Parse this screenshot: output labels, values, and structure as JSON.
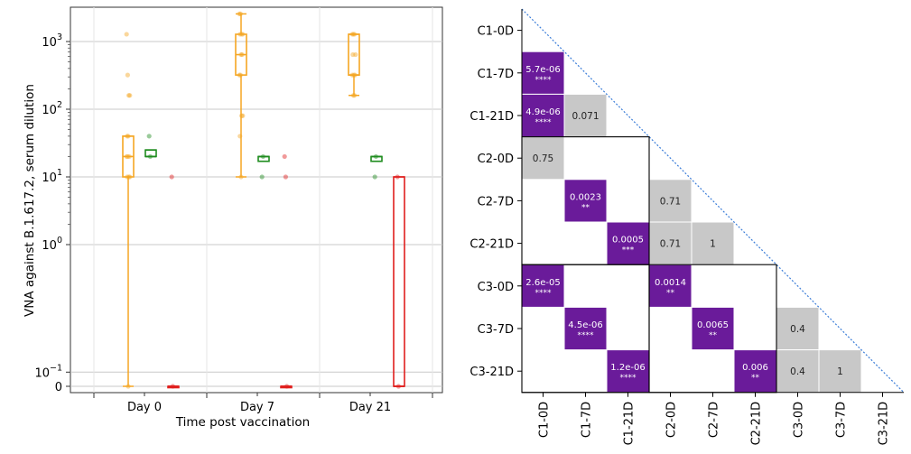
{
  "chart_data": [
    {
      "type": "box",
      "xlabel": "Time post vaccination",
      "ylabel": "VNA against B.1.617.2, serum dilution",
      "scale": "symlog",
      "categories": [
        "Day 0",
        "Day 7",
        "Day 21"
      ],
      "y_ticks": [
        {
          "value": 0,
          "label": "0"
        },
        {
          "value": 0.1,
          "base": "10",
          "exp": "−1"
        },
        {
          "value": 1,
          "base": "10",
          "exp": "0"
        },
        {
          "value": 10,
          "base": "10",
          "exp": "1"
        },
        {
          "value": 100,
          "base": "10",
          "exp": "2"
        },
        {
          "value": 1000,
          "base": "10",
          "exp": "3"
        }
      ],
      "grid": true,
      "series": [
        {
          "color": "#f5a623",
          "boxes": [
            {
              "category": "Day 0",
              "whislo": 0,
              "q1": 10,
              "med": 20,
              "q3": 40,
              "whishi": 40,
              "fliers": []
            },
            {
              "category": "Day 7",
              "whislo": 10,
              "q1": 320,
              "med": 640,
              "q3": 1280,
              "whishi": 2560,
              "fliers": []
            },
            {
              "category": "Day 21",
              "whislo": 160,
              "q1": 320,
              "med": 320,
              "q3": 1280,
              "whishi": 1280,
              "fliers": []
            }
          ],
          "points": [
            {
              "category": "Day 0",
              "values": [
                1280,
                320,
                160,
                160,
                40,
                40,
                20,
                20,
                20,
                10,
                10,
                10,
                0
              ]
            },
            {
              "category": "Day 7",
              "values": [
                2560,
                2560,
                1280,
                1280,
                1280,
                640,
                640,
                320,
                320,
                80,
                80,
                40,
                10
              ]
            },
            {
              "category": "Day 21",
              "values": [
                1280,
                1280,
                1280,
                640,
                640,
                320,
                320,
                320,
                160,
                160
              ]
            }
          ]
        },
        {
          "color": "#1e8c1e",
          "boxes": [
            {
              "category": "Day 0",
              "whislo": 20,
              "q1": 20,
              "med": 20,
              "q3": 25,
              "whishi": 25
            },
            {
              "category": "Day 7",
              "whislo": 17,
              "q1": 17,
              "med": 20,
              "q3": 20,
              "whishi": 20
            },
            {
              "category": "Day 21",
              "whislo": 17,
              "q1": 17,
              "med": 20,
              "q3": 20,
              "whishi": 20
            }
          ],
          "points": [
            {
              "category": "Day 0",
              "values": [
                40,
                20
              ]
            },
            {
              "category": "Day 7",
              "values": [
                10,
                20
              ]
            },
            {
              "category": "Day 21",
              "values": [
                10,
                20
              ]
            }
          ]
        },
        {
          "color": "#e0201e",
          "boxes": [
            {
              "category": "Day 0",
              "whislo": 0,
              "q1": 0,
              "med": 0,
              "q3": 0,
              "whishi": 0
            },
            {
              "category": "Day 7",
              "whislo": 0,
              "q1": 0,
              "med": 0,
              "q3": 0,
              "whishi": 0
            },
            {
              "category": "Day 21",
              "whislo": 0,
              "q1": 0,
              "med": 0,
              "q3": 10,
              "whishi": 10
            }
          ],
          "points": [
            {
              "category": "Day 0",
              "values": [
                10,
                0
              ]
            },
            {
              "category": "Day 7",
              "values": [
                20,
                10,
                0
              ]
            },
            {
              "category": "Day 21",
              "values": [
                10,
                0
              ]
            }
          ]
        }
      ]
    },
    {
      "type": "heatmap",
      "labels": [
        "C1-0D",
        "C1-7D",
        "C1-21D",
        "C2-0D",
        "C2-7D",
        "C2-21D",
        "C3-0D",
        "C3-7D",
        "C3-21D"
      ],
      "colors": {
        "significant": "#6a1b9a",
        "nonsignificant": "#c8c8c8"
      },
      "cells": [
        {
          "row": 1,
          "col": 0,
          "value": "5.7e-06",
          "stars": "****",
          "significant": true
        },
        {
          "row": 2,
          "col": 0,
          "value": "4.9e-06",
          "stars": "****",
          "significant": true
        },
        {
          "row": 2,
          "col": 1,
          "value": "0.071",
          "stars": "",
          "significant": false
        },
        {
          "row": 3,
          "col": 0,
          "value": "0.75",
          "stars": "",
          "significant": false
        },
        {
          "row": 4,
          "col": 1,
          "value": "0.0023",
          "stars": "**",
          "significant": true
        },
        {
          "row": 4,
          "col": 3,
          "value": "0.71",
          "stars": "",
          "significant": false
        },
        {
          "row": 5,
          "col": 2,
          "value": "0.0005",
          "stars": "***",
          "significant": true
        },
        {
          "row": 5,
          "col": 3,
          "value": "0.71",
          "stars": "",
          "significant": false
        },
        {
          "row": 5,
          "col": 4,
          "value": "1",
          "stars": "",
          "significant": false
        },
        {
          "row": 6,
          "col": 0,
          "value": "2.6e-05",
          "stars": "****",
          "significant": true
        },
        {
          "row": 6,
          "col": 3,
          "value": "0.0014",
          "stars": "**",
          "significant": true
        },
        {
          "row": 7,
          "col": 1,
          "value": "4.5e-06",
          "stars": "****",
          "significant": true
        },
        {
          "row": 7,
          "col": 4,
          "value": "0.0065",
          "stars": "**",
          "significant": true
        },
        {
          "row": 7,
          "col": 6,
          "value": "0.4",
          "stars": "",
          "significant": false
        },
        {
          "row": 8,
          "col": 2,
          "value": "1.2e-06",
          "stars": "****",
          "significant": true
        },
        {
          "row": 8,
          "col": 5,
          "value": "0.006",
          "stars": "**",
          "significant": true
        },
        {
          "row": 8,
          "col": 6,
          "value": "0.4",
          "stars": "",
          "significant": false
        },
        {
          "row": 8,
          "col": 7,
          "value": "1",
          "stars": "",
          "significant": false
        }
      ]
    }
  ]
}
